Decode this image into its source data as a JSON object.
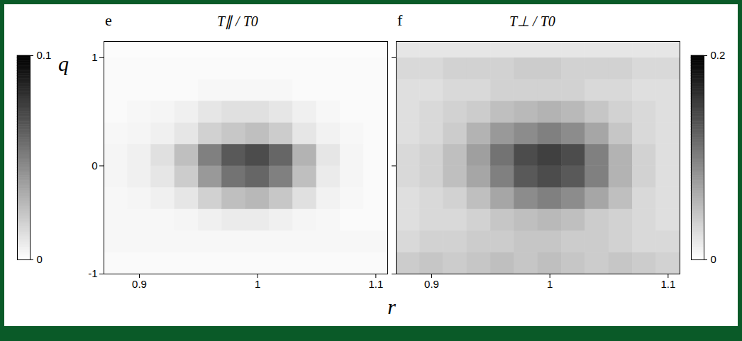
{
  "chart_data": [
    {
      "type": "heatmap",
      "title": "T∥ / T0",
      "panel_label": "e",
      "xlabel": "r",
      "ylabel": "q",
      "xlim": [
        0.87,
        1.11
      ],
      "xticks": [
        0.9,
        1,
        1.1
      ],
      "ylim": [
        -1,
        1.15
      ],
      "yticks": [
        -1,
        0,
        1
      ],
      "colorbar": {
        "range": [
          0,
          0.1
        ],
        "ticks": [
          0,
          0.1
        ]
      },
      "cells": {
        "x_bins": [
          0.87,
          0.89,
          0.91,
          0.93,
          0.95,
          0.97,
          0.99,
          1.01,
          1.03,
          1.05,
          1.07,
          1.09,
          1.11
        ],
        "y_bins": [
          -1,
          -0.8,
          -0.6,
          -0.4,
          -0.2,
          0,
          0.2,
          0.4,
          0.6,
          0.8,
          1,
          1.15
        ],
        "values": [
          [
            0.002,
            0.002,
            0.002,
            0.002,
            0.002,
            0.002,
            0.002,
            0.002,
            0.002,
            0.002,
            0.002,
            0.002
          ],
          [
            0.003,
            0.003,
            0.003,
            0.003,
            0.003,
            0.003,
            0.003,
            0.003,
            0.003,
            0.003,
            0.003,
            0.003
          ],
          [
            0.003,
            0.003,
            0.003,
            0.004,
            0.006,
            0.008,
            0.008,
            0.006,
            0.004,
            0.003,
            0.002,
            0.002
          ],
          [
            0.003,
            0.004,
            0.006,
            0.01,
            0.018,
            0.025,
            0.028,
            0.022,
            0.012,
            0.005,
            0.003,
            0.002
          ],
          [
            0.004,
            0.006,
            0.01,
            0.02,
            0.04,
            0.055,
            0.06,
            0.05,
            0.025,
            0.008,
            0.004,
            0.002
          ],
          [
            0.004,
            0.006,
            0.012,
            0.025,
            0.05,
            0.065,
            0.07,
            0.06,
            0.03,
            0.01,
            0.004,
            0.002
          ],
          [
            0.003,
            0.004,
            0.006,
            0.01,
            0.018,
            0.022,
            0.025,
            0.02,
            0.01,
            0.005,
            0.003,
            0.002
          ],
          [
            0.002,
            0.003,
            0.004,
            0.006,
            0.01,
            0.012,
            0.012,
            0.01,
            0.006,
            0.003,
            0.002,
            0.002
          ],
          [
            0.002,
            0.002,
            0.002,
            0.002,
            0.003,
            0.003,
            0.003,
            0.003,
            0.002,
            0.002,
            0.002,
            0.002
          ],
          [
            0.002,
            0.002,
            0.002,
            0.002,
            0.002,
            0.002,
            0.002,
            0.002,
            0.002,
            0.002,
            0.002,
            0.002
          ],
          [
            0.001,
            0.001,
            0.001,
            0.001,
            0.001,
            0.001,
            0.001,
            0.001,
            0.001,
            0.001,
            0.001,
            0.001
          ]
        ]
      }
    },
    {
      "type": "heatmap",
      "title": "T⊥ / T0",
      "panel_label": "f",
      "tick_labels": "x",
      "xlim": [
        0.87,
        1.11
      ],
      "xticks": [
        0.9,
        1,
        1.1
      ],
      "ylim": [
        -1,
        1.15
      ],
      "yticks": [
        -1,
        0,
        1
      ],
      "colorbar": {
        "range": [
          0,
          0.2
        ],
        "ticks": [
          0,
          0.2
        ]
      },
      "cells": {
        "x_bins": [
          0.87,
          0.89,
          0.91,
          0.93,
          0.95,
          0.97,
          0.99,
          1.01,
          1.03,
          1.05,
          1.07,
          1.09,
          1.11
        ],
        "y_bins": [
          -1,
          -0.8,
          -0.6,
          -0.4,
          -0.2,
          0,
          0.2,
          0.4,
          0.6,
          0.8,
          1,
          1.15
        ],
        "values": [
          [
            0.04,
            0.045,
            0.04,
            0.045,
            0.05,
            0.045,
            0.05,
            0.045,
            0.04,
            0.045,
            0.04,
            0.035
          ],
          [
            0.03,
            0.035,
            0.035,
            0.04,
            0.04,
            0.045,
            0.045,
            0.04,
            0.04,
            0.035,
            0.03,
            0.03
          ],
          [
            0.025,
            0.03,
            0.03,
            0.035,
            0.045,
            0.05,
            0.055,
            0.05,
            0.04,
            0.035,
            0.03,
            0.025
          ],
          [
            0.025,
            0.03,
            0.035,
            0.05,
            0.07,
            0.09,
            0.1,
            0.09,
            0.07,
            0.05,
            0.03,
            0.025
          ],
          [
            0.03,
            0.035,
            0.05,
            0.07,
            0.1,
            0.13,
            0.14,
            0.13,
            0.1,
            0.06,
            0.035,
            0.025
          ],
          [
            0.03,
            0.035,
            0.05,
            0.075,
            0.11,
            0.14,
            0.15,
            0.14,
            0.1,
            0.06,
            0.035,
            0.025
          ],
          [
            0.025,
            0.03,
            0.04,
            0.06,
            0.08,
            0.09,
            0.1,
            0.09,
            0.07,
            0.045,
            0.03,
            0.025
          ],
          [
            0.025,
            0.03,
            0.035,
            0.04,
            0.05,
            0.055,
            0.06,
            0.055,
            0.045,
            0.035,
            0.03,
            0.025
          ],
          [
            0.025,
            0.025,
            0.03,
            0.03,
            0.035,
            0.035,
            0.035,
            0.035,
            0.03,
            0.03,
            0.025,
            0.025
          ],
          [
            0.03,
            0.03,
            0.035,
            0.035,
            0.035,
            0.04,
            0.04,
            0.035,
            0.035,
            0.035,
            0.03,
            0.03
          ],
          [
            0.02,
            0.02,
            0.02,
            0.02,
            0.02,
            0.02,
            0.02,
            0.02,
            0.02,
            0.02,
            0.02,
            0.02
          ]
        ]
      }
    }
  ]
}
